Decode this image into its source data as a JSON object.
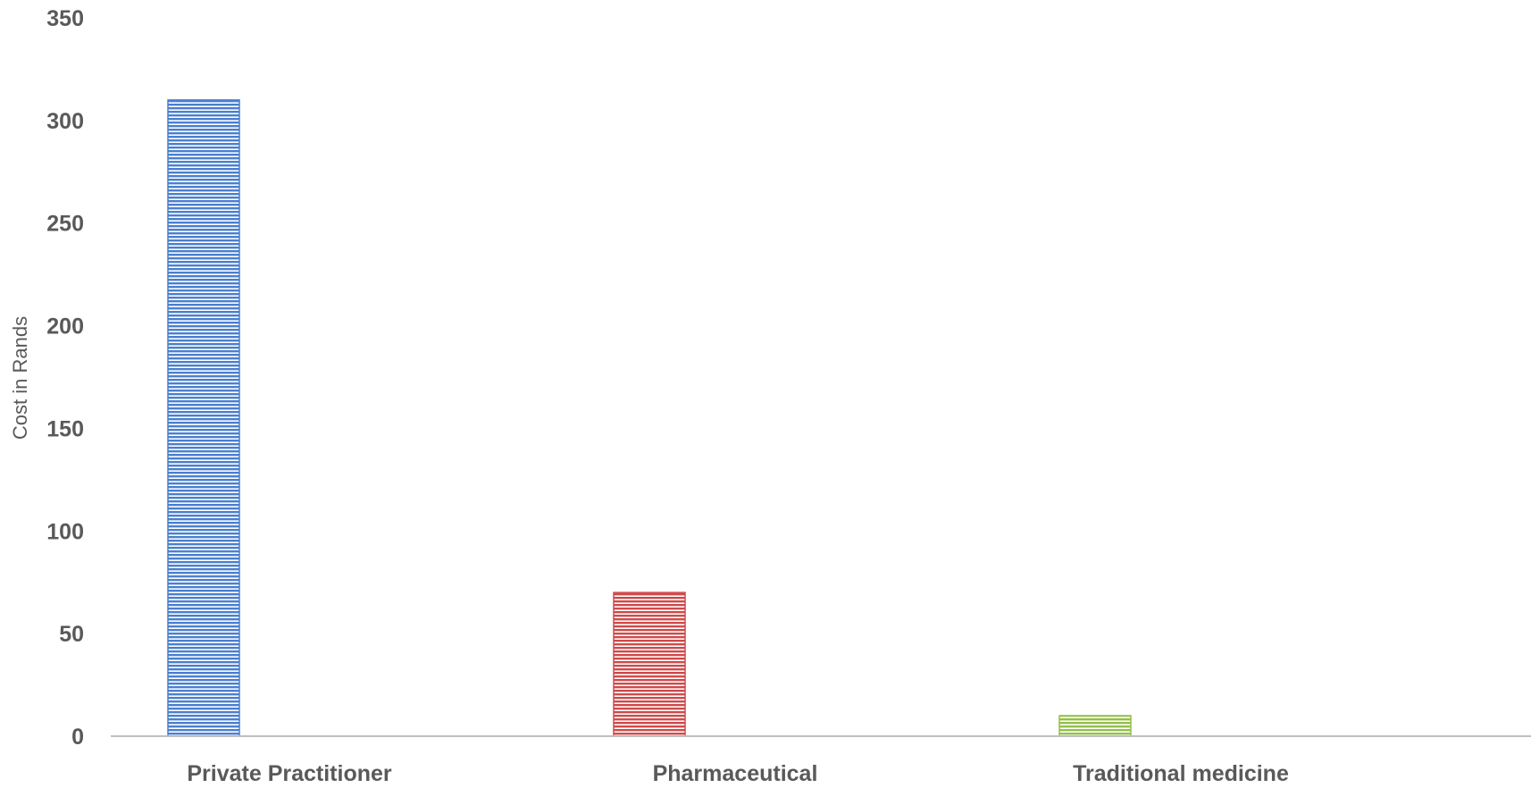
{
  "chart_data": {
    "type": "bar",
    "categories": [
      "Private Practitioner",
      "Pharmaceutical",
      "Traditional medicine"
    ],
    "values": [
      310,
      70,
      10
    ],
    "ylabel": "Cost in Rands",
    "xlabel": "",
    "ylim": [
      0,
      350
    ],
    "yticks": [
      "0",
      "50",
      "100",
      "150",
      "200",
      "250",
      "300",
      "350"
    ],
    "grid": false,
    "colors": [
      "#4a7fcf",
      "#cf4a4a",
      "#93bf4a"
    ],
    "pattern": "horizontal-stripes"
  }
}
